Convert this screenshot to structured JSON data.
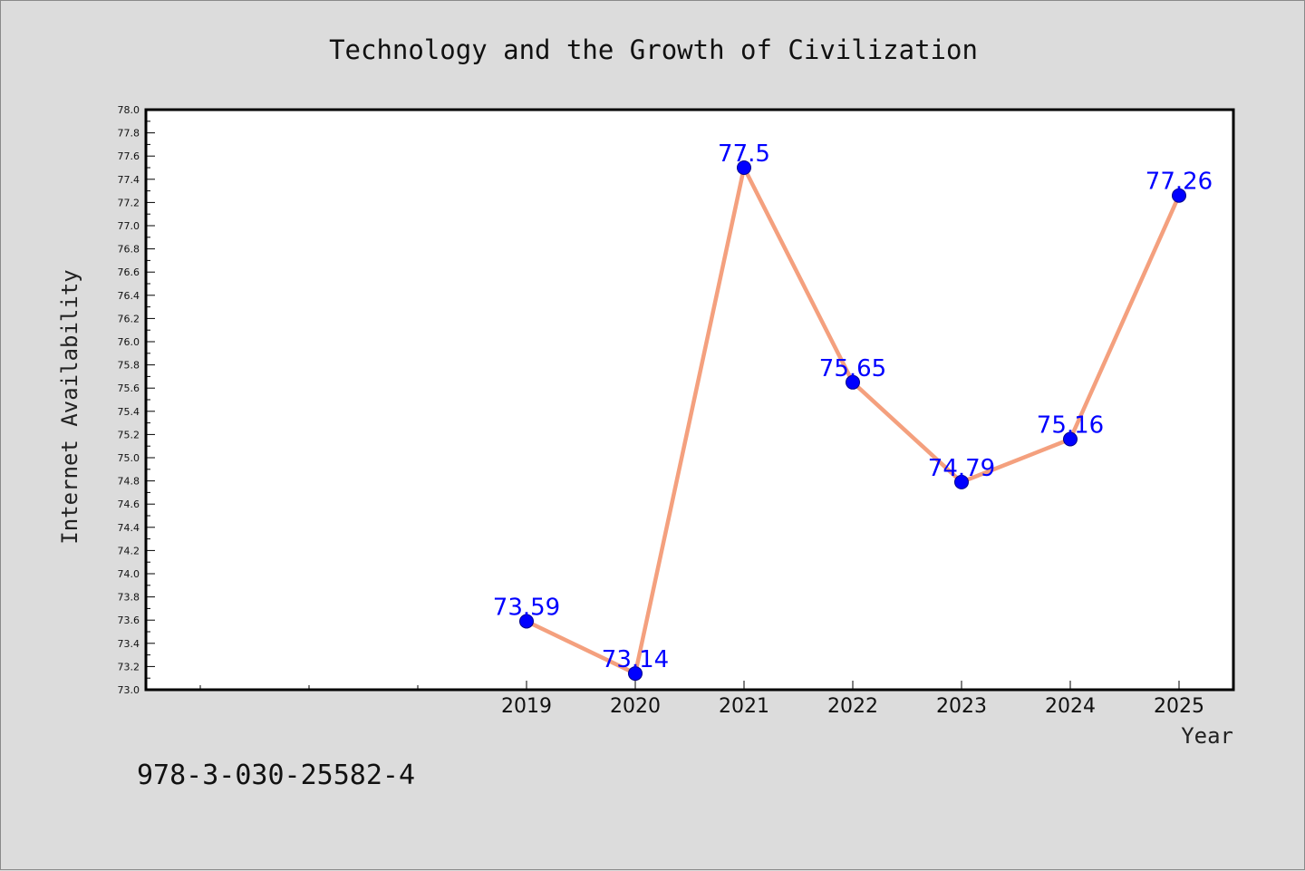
{
  "chart_data": {
    "type": "line",
    "title": "Technology and the Growth of Civilization",
    "xlabel": "Year",
    "ylabel": "Internet Availability",
    "x": [
      "2019",
      "2020",
      "2021",
      "2022",
      "2023",
      "2024",
      "2025"
    ],
    "series": [
      {
        "values": [
          73.59,
          73.14,
          77.5,
          75.65,
          74.79,
          75.16,
          77.26
        ]
      }
    ],
    "data_labels": [
      "73.59",
      "73.14",
      "77.5",
      "75.65",
      "74.79",
      "75.16",
      "77.26"
    ],
    "ylim": [
      73.0,
      78.0
    ],
    "xlim": [
      2015.5,
      2025.5
    ],
    "y_ticks": [
      "73.0",
      "73.2",
      "73.4",
      "73.6",
      "73.8",
      "74.0",
      "74.2",
      "74.4",
      "74.6",
      "74.8",
      "75.0",
      "75.2",
      "75.4",
      "75.6",
      "75.8",
      "76.0",
      "76.2",
      "76.4",
      "76.6",
      "76.8",
      "77.0",
      "77.2",
      "77.4",
      "77.6",
      "77.8",
      "78.0"
    ],
    "x_minor_ticks": [
      2016,
      2017,
      2018
    ],
    "grid": false,
    "legend": "none",
    "colors": {
      "line": "#f4a07e",
      "marker": "#0000ff",
      "marker_edge": "#00008b",
      "label": "#0000ff"
    }
  },
  "footer": {
    "code": "978-3-030-25582-4"
  }
}
